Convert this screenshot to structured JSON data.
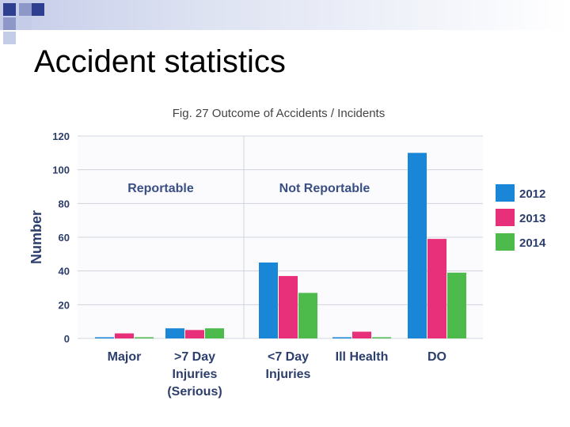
{
  "slide": {
    "title": "Accident statistics"
  },
  "colors": {
    "band_dark": "#2e3f8f",
    "band_mid": "#8d97c8",
    "band_light": "#c5cce8",
    "axis_text": "#2c3e6b",
    "grid": "#cfd4dd"
  },
  "chart_data": {
    "type": "bar",
    "title": "Fig. 27 Outcome of Accidents / Incidents",
    "ylabel": "Number",
    "xlabel": "",
    "ylim": [
      0,
      120
    ],
    "yticks": [
      0,
      20,
      40,
      60,
      80,
      100,
      120
    ],
    "grid": true,
    "legend_position": "right",
    "categories": [
      [
        "Major"
      ],
      [
        ">7 Day",
        "Injuries",
        "(Serious)"
      ],
      [
        "<7 Day",
        "Injuries"
      ],
      [
        "Ill Health"
      ],
      [
        "DO"
      ]
    ],
    "series": [
      {
        "name": "2012",
        "color": "#1a86d8",
        "values": [
          0,
          6,
          45,
          0,
          110
        ]
      },
      {
        "name": "2013",
        "color": "#e8307a",
        "values": [
          3,
          5,
          37,
          4,
          59
        ]
      },
      {
        "name": "2014",
        "color": "#4cbb4c",
        "values": [
          0,
          6,
          27,
          0,
          39
        ]
      }
    ],
    "annotations": [
      "Reportable",
      "Not Reportable"
    ]
  }
}
